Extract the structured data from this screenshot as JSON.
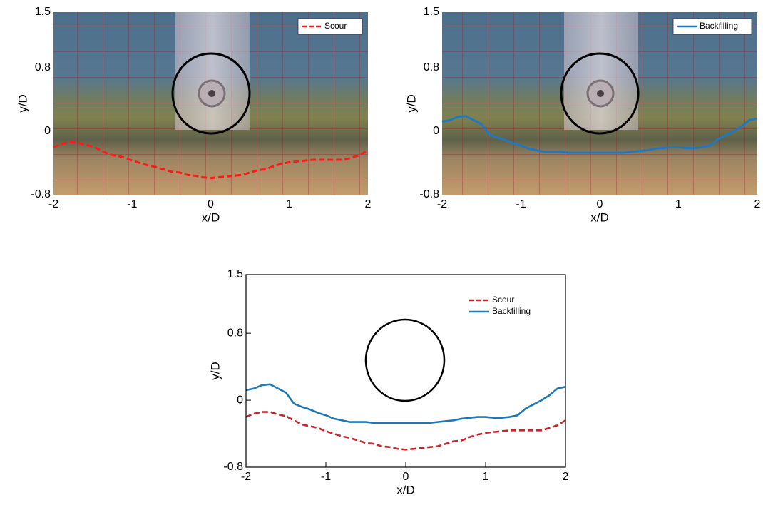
{
  "chart_data": [
    {
      "type": "line",
      "xlabel": "x/D",
      "ylabel": "y/D",
      "x": [
        -2,
        -1.9,
        -1.8,
        -1.7,
        -1.6,
        -1.5,
        -1.4,
        -1.3,
        -1.2,
        -1.1,
        -1,
        -0.9,
        -0.8,
        -0.7,
        -0.6,
        -0.5,
        -0.4,
        -0.3,
        -0.2,
        -0.1,
        0,
        0.1,
        0.2,
        0.3,
        0.4,
        0.5,
        0.6,
        0.7,
        0.8,
        0.9,
        1,
        1.1,
        1.2,
        1.3,
        1.4,
        1.5,
        1.6,
        1.7,
        1.8,
        1.9,
        2
      ],
      "series": [
        {
          "name": "Scour",
          "color": "#ff1a1a",
          "style": "dashed",
          "values": [
            -0.2,
            -0.16,
            -0.14,
            -0.14,
            -0.17,
            -0.19,
            -0.24,
            -0.29,
            -0.31,
            -0.33,
            -0.37,
            -0.4,
            -0.43,
            -0.45,
            -0.48,
            -0.51,
            -0.52,
            -0.55,
            -0.56,
            -0.58,
            -0.59,
            -0.58,
            -0.57,
            -0.56,
            -0.55,
            -0.52,
            -0.49,
            -0.48,
            -0.44,
            -0.41,
            -0.39,
            -0.38,
            -0.37,
            -0.36,
            -0.36,
            -0.36,
            -0.36,
            -0.36,
            -0.33,
            -0.3,
            -0.24
          ]
        }
      ],
      "xlim": [
        -2,
        2
      ],
      "ylim": [
        -0.8,
        1.5
      ],
      "xticks": [
        -2,
        -1,
        0,
        1,
        2
      ],
      "yticks": [
        -0.8,
        0,
        0.8,
        1.5
      ],
      "legend": "upper right",
      "legend_frame": true
    },
    {
      "type": "line",
      "xlabel": "x/D",
      "ylabel": "y/D",
      "x": [
        -2,
        -1.9,
        -1.8,
        -1.7,
        -1.6,
        -1.5,
        -1.4,
        -1.3,
        -1.2,
        -1.1,
        -1,
        -0.9,
        -0.8,
        -0.7,
        -0.6,
        -0.5,
        -0.4,
        -0.3,
        -0.2,
        -0.1,
        0,
        0.1,
        0.2,
        0.3,
        0.4,
        0.5,
        0.6,
        0.7,
        0.8,
        0.9,
        1,
        1.1,
        1.2,
        1.3,
        1.4,
        1.5,
        1.6,
        1.7,
        1.8,
        1.9,
        2
      ],
      "series": [
        {
          "name": "Backfilling",
          "color": "#1f78c0",
          "style": "solid",
          "values": [
            0.12,
            0.14,
            0.18,
            0.19,
            0.14,
            0.09,
            -0.04,
            -0.08,
            -0.11,
            -0.15,
            -0.18,
            -0.22,
            -0.24,
            -0.26,
            -0.26,
            -0.26,
            -0.27,
            -0.27,
            -0.27,
            -0.27,
            -0.27,
            -0.27,
            -0.27,
            -0.27,
            -0.26,
            -0.25,
            -0.24,
            -0.22,
            -0.21,
            -0.2,
            -0.2,
            -0.21,
            -0.21,
            -0.2,
            -0.18,
            -0.1,
            -0.05,
            0,
            0.06,
            0.14,
            0.16
          ]
        }
      ],
      "xlim": [
        -2,
        2
      ],
      "ylim": [
        -0.8,
        1.5
      ],
      "xticks": [
        -2,
        -1,
        0,
        1,
        2
      ],
      "yticks": [
        -0.8,
        0,
        0.8,
        1.5
      ],
      "legend": "upper right",
      "legend_frame": true
    },
    {
      "type": "line",
      "xlabel": "x/D",
      "ylabel": "y/D",
      "x": [
        -2,
        -1.9,
        -1.8,
        -1.7,
        -1.6,
        -1.5,
        -1.4,
        -1.3,
        -1.2,
        -1.1,
        -1,
        -0.9,
        -0.8,
        -0.7,
        -0.6,
        -0.5,
        -0.4,
        -0.3,
        -0.2,
        -0.1,
        0,
        0.1,
        0.2,
        0.3,
        0.4,
        0.5,
        0.6,
        0.7,
        0.8,
        0.9,
        1,
        1.1,
        1.2,
        1.3,
        1.4,
        1.5,
        1.6,
        1.7,
        1.8,
        1.9,
        2
      ],
      "series": [
        {
          "name": "Scour",
          "color": "#c1272d",
          "style": "dashed",
          "values": [
            -0.2,
            -0.16,
            -0.14,
            -0.14,
            -0.17,
            -0.19,
            -0.24,
            -0.29,
            -0.31,
            -0.33,
            -0.37,
            -0.4,
            -0.43,
            -0.45,
            -0.48,
            -0.51,
            -0.52,
            -0.55,
            -0.56,
            -0.58,
            -0.59,
            -0.58,
            -0.57,
            -0.56,
            -0.55,
            -0.52,
            -0.49,
            -0.48,
            -0.44,
            -0.41,
            -0.39,
            -0.38,
            -0.37,
            -0.36,
            -0.36,
            -0.36,
            -0.36,
            -0.36,
            -0.33,
            -0.3,
            -0.24
          ]
        },
        {
          "name": "Backfilling",
          "color": "#1f78b4",
          "style": "solid",
          "values": [
            0.12,
            0.14,
            0.18,
            0.19,
            0.14,
            0.09,
            -0.04,
            -0.08,
            -0.11,
            -0.15,
            -0.18,
            -0.22,
            -0.24,
            -0.26,
            -0.26,
            -0.26,
            -0.27,
            -0.27,
            -0.27,
            -0.27,
            -0.27,
            -0.27,
            -0.27,
            -0.27,
            -0.26,
            -0.25,
            -0.24,
            -0.22,
            -0.21,
            -0.2,
            -0.2,
            -0.21,
            -0.21,
            -0.2,
            -0.18,
            -0.1,
            -0.05,
            0,
            0.06,
            0.14,
            0.16
          ]
        }
      ],
      "xlim": [
        -2,
        2
      ],
      "ylim": [
        -0.8,
        1.5
      ],
      "xticks": [
        -2,
        -1,
        0,
        1,
        2
      ],
      "yticks": [
        -0.8,
        0,
        0.8,
        1.5
      ],
      "legend": "upper right",
      "legend_frame": false
    }
  ]
}
